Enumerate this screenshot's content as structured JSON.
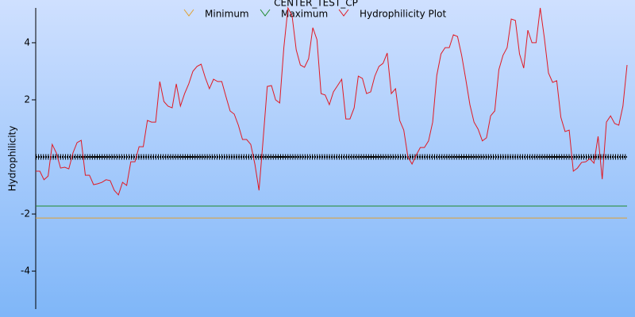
{
  "chart_data": {
    "type": "line",
    "title": "CENTER_TEST_CP",
    "y_label": "Hydrophilicity",
    "ylim": [
      -5.33,
      5.22
    ],
    "yticks": [
      4,
      2,
      -2,
      -4
    ],
    "series": [
      {
        "name": "Minimum",
        "color": "#e0a030",
        "value": -2.14
      },
      {
        "name": "Maximum",
        "color": "#1e8a2e",
        "value": -1.72
      },
      {
        "name": "Hydrophilicity Plot",
        "color": "#e01a24",
        "values": [
          -0.5,
          -0.5,
          -0.8,
          -0.67,
          0.44,
          0.14,
          -0.39,
          -0.36,
          -0.42,
          0.14,
          0.5,
          0.58,
          -0.64,
          -0.64,
          -0.97,
          -0.94,
          -0.89,
          -0.8,
          -0.83,
          -1.17,
          -1.33,
          -0.89,
          -1.0,
          -0.17,
          -0.17,
          0.36,
          0.36,
          1.28,
          1.22,
          1.22,
          2.64,
          1.94,
          1.78,
          1.72,
          2.56,
          1.78,
          2.22,
          2.56,
          3.0,
          3.17,
          3.25,
          2.78,
          2.39,
          2.72,
          2.64,
          2.64,
          2.11,
          1.61,
          1.5,
          1.11,
          0.61,
          0.61,
          0.44,
          -0.25,
          -1.17,
          0.61,
          2.47,
          2.5,
          2.0,
          1.89,
          3.83,
          5.22,
          4.94,
          3.75,
          3.22,
          3.14,
          3.44,
          4.53,
          4.11,
          2.22,
          2.17,
          1.83,
          2.28,
          2.5,
          2.72,
          1.33,
          1.33,
          1.72,
          2.83,
          2.75,
          2.22,
          2.28,
          2.83,
          3.17,
          3.28,
          3.64,
          2.22,
          2.39,
          1.28,
          0.94,
          0.0,
          -0.25,
          0.06,
          0.33,
          0.33,
          0.56,
          1.22,
          2.86,
          3.61,
          3.83,
          3.83,
          4.28,
          4.22,
          3.56,
          2.72,
          1.83,
          1.22,
          0.97,
          0.56,
          0.67,
          1.44,
          1.61,
          3.06,
          3.56,
          3.83,
          4.83,
          4.78,
          3.61,
          3.11,
          4.44,
          4.0,
          4.0,
          5.22,
          4.17,
          2.94,
          2.61,
          2.67,
          1.39,
          0.89,
          0.94,
          -0.5,
          -0.39,
          -0.19,
          -0.17,
          -0.06,
          -0.22,
          0.72,
          -0.78,
          1.22,
          1.44,
          1.17,
          1.11,
          1.78,
          3.22
        ]
      }
    ]
  }
}
